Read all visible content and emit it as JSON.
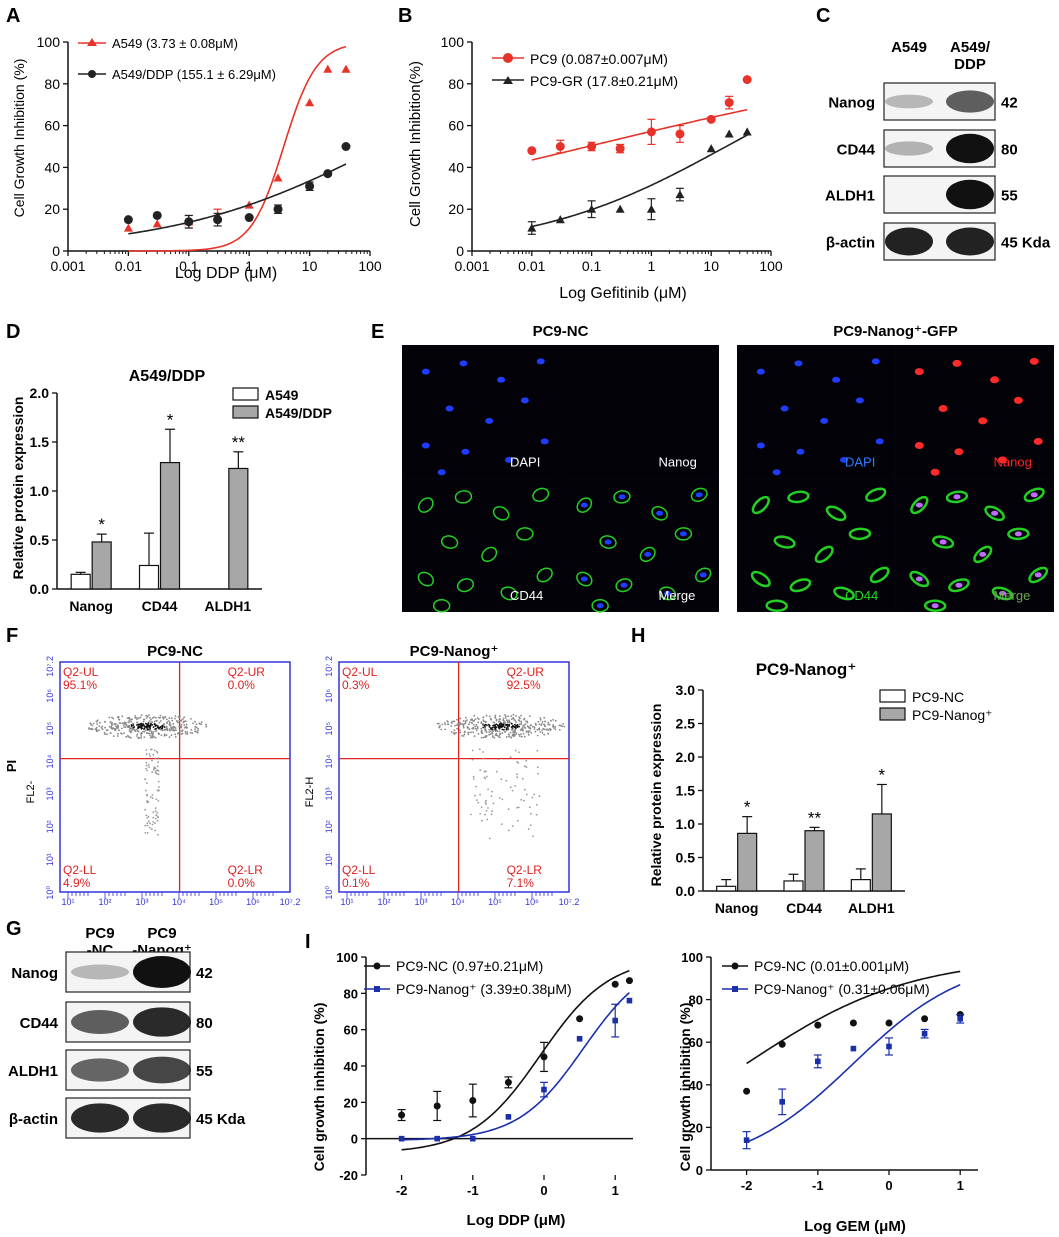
{
  "panels": {
    "A": {
      "letter": "A",
      "chart_data": {
        "type": "scatter",
        "xlabel": "Log DDP (μM)",
        "ylabel": "Cell Growth Inhibition (%)",
        "xscale": "log",
        "xlim": [
          0.001,
          100
        ],
        "ylim": [
          0,
          100
        ],
        "xticks": [
          "0.001",
          "0.01",
          "0.1",
          "1",
          "10",
          "100"
        ],
        "yticks": [
          "0",
          "20",
          "40",
          "60",
          "80",
          "100"
        ],
        "legend": "top-left",
        "series": [
          {
            "name": "A549 (3.73 ± 0.08μM)",
            "color": "#e8332a",
            "marker": "triangle",
            "x": [
              0.01,
              0.03,
              0.1,
              0.3,
              1,
              3,
              10,
              20,
              40
            ],
            "y": [
              11,
              13,
              14,
              17,
              22,
              35,
              71,
              87,
              87
            ],
            "err": [
              0,
              0,
              3,
              3,
              0,
              0,
              0,
              0,
              0
            ],
            "fit": {
              "bottom": 0,
              "top": 100,
              "ec50": 3.73,
              "hill": 1.6
            }
          },
          {
            "name": "A549/DDP (155.1 ± 6.29μM)",
            "color": "#222222",
            "marker": "circle",
            "x": [
              0.01,
              0.03,
              0.1,
              0.3,
              1,
              3,
              10,
              20,
              40
            ],
            "y": [
              15,
              17,
              14,
              15,
              16,
              20,
              31,
              37,
              50
            ],
            "err": [
              0,
              0,
              3,
              3,
              0,
              2,
              2,
              0,
              0
            ],
            "fit": {
              "bottom": 0,
              "top": 100,
              "ec50": 155.1,
              "hill": 0.25
            }
          }
        ]
      }
    },
    "B": {
      "letter": "B",
      "chart_data": {
        "type": "scatter",
        "xlabel": "Log Gefitinib (μM)",
        "ylabel": "Cell Growth Inhibition(%)",
        "xscale": "log",
        "xlim": [
          0.001,
          100
        ],
        "ylim": [
          0,
          100
        ],
        "xticks": [
          "0.001",
          "0.01",
          "0.1",
          "1",
          "10",
          "100"
        ],
        "yticks": [
          "0",
          "20",
          "40",
          "60",
          "80",
          "100"
        ],
        "legend": "top-left",
        "series": [
          {
            "name": "PC9 (0.087±0.007μM)",
            "color": "#e8332a",
            "marker": "circle",
            "x": [
              0.01,
              0.03,
              0.1,
              0.3,
              1,
              3,
              10,
              20,
              40
            ],
            "y": [
              48,
              50,
              50,
              49,
              57,
              56,
              63,
              71,
              82
            ],
            "err": [
              0,
              3,
              2,
              2,
              6,
              4,
              0,
              3,
              0
            ],
            "fit": {
              "bottom": 0,
              "top": 100,
              "ec50": 0.087,
              "hill": 0.12
            }
          },
          {
            "name": "PC9-GR (17.8±0.21μM)",
            "color": "#222222",
            "marker": "triangle",
            "x": [
              0.01,
              0.03,
              0.1,
              0.3,
              1,
              3,
              10,
              20,
              40
            ],
            "y": [
              11,
              15,
              20,
              20,
              20,
              27,
              49,
              56,
              57
            ],
            "err": [
              3,
              0,
              4,
              0,
              5,
              3,
              0,
              0,
              0
            ],
            "fit": {
              "bottom": 0,
              "top": 100,
              "ec50": 17.8,
              "hill": 0.27
            }
          }
        ]
      }
    },
    "C": {
      "letter": "C",
      "columns": [
        "A549",
        "A549/\nDDP"
      ],
      "rows": [
        {
          "label": "Nanog",
          "size": "42",
          "bands": [
            0.03,
            0.55
          ]
        },
        {
          "label": "CD44",
          "size": "80",
          "bands": [
            0.06,
            1.0
          ]
        },
        {
          "label": "ALDH1",
          "size": "55",
          "bands": [
            0.0,
            1.0
          ]
        },
        {
          "label": "β-actin",
          "size": "45 Kda",
          "bands": [
            0.9,
            0.9
          ]
        }
      ]
    },
    "D": {
      "letter": "D",
      "chart_data": {
        "type": "bar",
        "title": "A549/DDP",
        "ylabel": "Relative protein expression",
        "categories": [
          "Nanog",
          "CD44",
          "ALDH1"
        ],
        "ylim": [
          0,
          2.0
        ],
        "yticks": [
          "0.0",
          "0.5",
          "1.0",
          "1.5",
          "2.0"
        ],
        "legend": "top-right",
        "series": [
          {
            "name": "A549",
            "color": "#ffffff",
            "values": [
              0.15,
              0.24,
              0.0
            ],
            "err": [
              0.02,
              0.33,
              0.0
            ]
          },
          {
            "name": "A549/DDP",
            "color": "#a7a7a7",
            "values": [
              0.48,
              1.29,
              1.23
            ],
            "err": [
              0.08,
              0.34,
              0.17
            ]
          }
        ],
        "annotations": [
          "*",
          "*",
          "**"
        ]
      }
    },
    "E": {
      "letter": "E",
      "groups": [
        {
          "title": "PC9-NC",
          "labels": [
            "DAPI",
            "Nanog",
            "CD44",
            "Merge"
          ],
          "label_colors": [
            "#ffffff",
            "#ffffff",
            "#ffffff",
            "#ffffff"
          ],
          "nanog_on": false
        },
        {
          "title": "PC9-Nanog⁺-GFP",
          "labels": [
            "DAPI",
            "Nanog",
            "CD44",
            "Merge"
          ],
          "label_colors": [
            "#2a7bff",
            "#ff2222",
            "#22dd22",
            "#6aa84f"
          ],
          "nanog_on": true
        }
      ]
    },
    "F": {
      "letter": "F",
      "plots": [
        {
          "title": "PC9-NC",
          "ylabel": "PI",
          "yaxis": "FL2-",
          "q": [
            {
              "name": "Q2-UL",
              "pct": "95.1%"
            },
            {
              "name": "Q2-UR",
              "pct": "0.0%"
            },
            {
              "name": "Q2-LL",
              "pct": "4.9%"
            },
            {
              "name": "Q2-LR",
              "pct": "0.0%"
            }
          ],
          "yticks": [
            "10⁰",
            "10¹",
            "10²",
            "10³",
            "10⁴",
            "10⁵",
            "10⁶",
            "10⁷.2"
          ],
          "xticks": [
            "10¹",
            "10²",
            "10³",
            "10⁴",
            "10⁵",
            "10⁶",
            "10⁷.2"
          ]
        },
        {
          "title": "PC9-Nanog⁺",
          "ylabel": "",
          "yaxis": "FL2-H",
          "q": [
            {
              "name": "Q2-UL",
              "pct": "0.3%"
            },
            {
              "name": "Q2-UR",
              "pct": "92.5%"
            },
            {
              "name": "Q2-LL",
              "pct": "0.1%"
            },
            {
              "name": "Q2-LR",
              "pct": "7.1%"
            }
          ],
          "yticks": [
            "10⁰",
            "10¹",
            "10²",
            "10³",
            "10⁴",
            "10⁵",
            "10⁶",
            "10⁷.2"
          ],
          "xticks": [
            "10¹",
            "10²",
            "10³",
            "10⁴",
            "10⁵",
            "10⁶",
            "10⁷.2"
          ]
        }
      ]
    },
    "G": {
      "letter": "G",
      "columns": [
        "PC9\n-NC",
        "PC9\n-Nanog⁺"
      ],
      "rows": [
        {
          "label": "Nanog",
          "size": "42",
          "bands": [
            0.03,
            1.0
          ]
        },
        {
          "label": "CD44",
          "size": "80",
          "bands": [
            0.55,
            0.85
          ]
        },
        {
          "label": "ALDH1",
          "size": "55",
          "bands": [
            0.5,
            0.7
          ]
        },
        {
          "label": "β-actin",
          "size": "45 Kda",
          "bands": [
            0.85,
            0.85
          ]
        }
      ]
    },
    "H": {
      "letter": "H",
      "chart_data": {
        "type": "bar",
        "title": "PC9-Nanog⁺",
        "ylabel": "Relative protein expression",
        "categories": [
          "Nanog",
          "CD44",
          "ALDH1"
        ],
        "ylim": [
          0,
          3.0
        ],
        "yticks": [
          "0.0",
          "0.5",
          "1.0",
          "1.5",
          "2.0",
          "2.5",
          "3.0"
        ],
        "legend": "top-right",
        "series": [
          {
            "name": "PC9-NC",
            "color": "#ffffff",
            "values": [
              0.07,
              0.15,
              0.17
            ],
            "err": [
              0.1,
              0.1,
              0.16
            ]
          },
          {
            "name": "PC9-Nanog⁺",
            "color": "#a7a7a7",
            "values": [
              0.86,
              0.9,
              1.15
            ],
            "err": [
              0.25,
              0.05,
              0.44
            ]
          }
        ],
        "annotations": [
          "*",
          "**",
          "*"
        ]
      }
    },
    "I": {
      "letter": "I",
      "charts": [
        {
          "chart_data": {
            "type": "scatter",
            "xlabel": "Log DDP (μM)",
            "ylabel": "Cell growth inhibition (%)",
            "xlim": [
              -2.5,
              1.25
            ],
            "ylim": [
              -20,
              100
            ],
            "xticks": [
              "-2",
              "-1",
              "0",
              "1"
            ],
            "yticks": [
              "-20",
              "0",
              "20",
              "40",
              "60",
              "80",
              "100"
            ],
            "legend": "top-left",
            "series": [
              {
                "name": "PC9-NC (0.97±0.21μM)",
                "color": "#111111",
                "marker": "circle",
                "x": [
                  -2,
                  -1.5,
                  -1,
                  -0.5,
                  0,
                  0.5,
                  1,
                  1.2
                ],
                "y": [
                  13,
                  18,
                  21,
                  31,
                  45,
                  66,
                  85,
                  87
                ],
                "err": [
                  3,
                  8,
                  9,
                  3,
                  8,
                  0,
                  0,
                  0
                ],
                "fit": {
                  "bottom": -8,
                  "top": 100,
                  "logec50": -0.05,
                  "hill": 0.9
                }
              },
              {
                "name": "PC9-Nanog⁺ (3.39±0.38μM)",
                "color": "#1a2fa8",
                "marker": "square",
                "x": [
                  -2,
                  -1.5,
                  -1,
                  -0.5,
                  0,
                  0.5,
                  1,
                  1.2
                ],
                "y": [
                  0,
                  0,
                  0,
                  12,
                  27,
                  55,
                  65,
                  76
                ],
                "err": [
                  0,
                  0,
                  0,
                  0,
                  4,
                  0,
                  9,
                  0
                ],
                "fit": {
                  "bottom": -1,
                  "top": 100,
                  "logec50": 0.55,
                  "hill": 0.95
                }
              }
            ]
          }
        },
        {
          "chart_data": {
            "type": "scatter",
            "xlabel": "Log GEM (μM)",
            "ylabel": "Cell growth inhibition (%)",
            "xlim": [
              -2.5,
              1.25
            ],
            "ylim": [
              0,
              100
            ],
            "xticks": [
              "-2",
              "-1",
              "0",
              "1"
            ],
            "yticks": [
              "0",
              "20",
              "40",
              "60",
              "80",
              "100"
            ],
            "legend": "top-left",
            "series": [
              {
                "name": "PC9-NC (0.01±0.001μM)",
                "color": "#111111",
                "marker": "circle",
                "x": [
                  -2,
                  -1.5,
                  -1,
                  -0.5,
                  0,
                  0.5,
                  1
                ],
                "y": [
                  37,
                  59,
                  68,
                  69,
                  69,
                  71,
                  73
                ],
                "err": [
                  0,
                  0,
                  0,
                  0,
                  0,
                  0,
                  0
                ],
                "fit": {
                  "bottom": 0,
                  "top": 100,
                  "logec50": -2.0,
                  "hill": 0.38
                }
              },
              {
                "name": "PC9-Nanog⁺ (0.31±0.06μM)",
                "color": "#1a2fa8",
                "marker": "square",
                "x": [
                  -2,
                  -1.5,
                  -1,
                  -0.5,
                  0,
                  0.5,
                  1
                ],
                "y": [
                  14,
                  32,
                  51,
                  57,
                  58,
                  64,
                  71
                ],
                "err": [
                  4,
                  6,
                  3,
                  0,
                  4,
                  2,
                  2
                ],
                "fit": {
                  "bottom": 0,
                  "top": 100,
                  "logec50": -0.5,
                  "hill": 0.55
                }
              }
            ]
          }
        }
      ]
    }
  }
}
